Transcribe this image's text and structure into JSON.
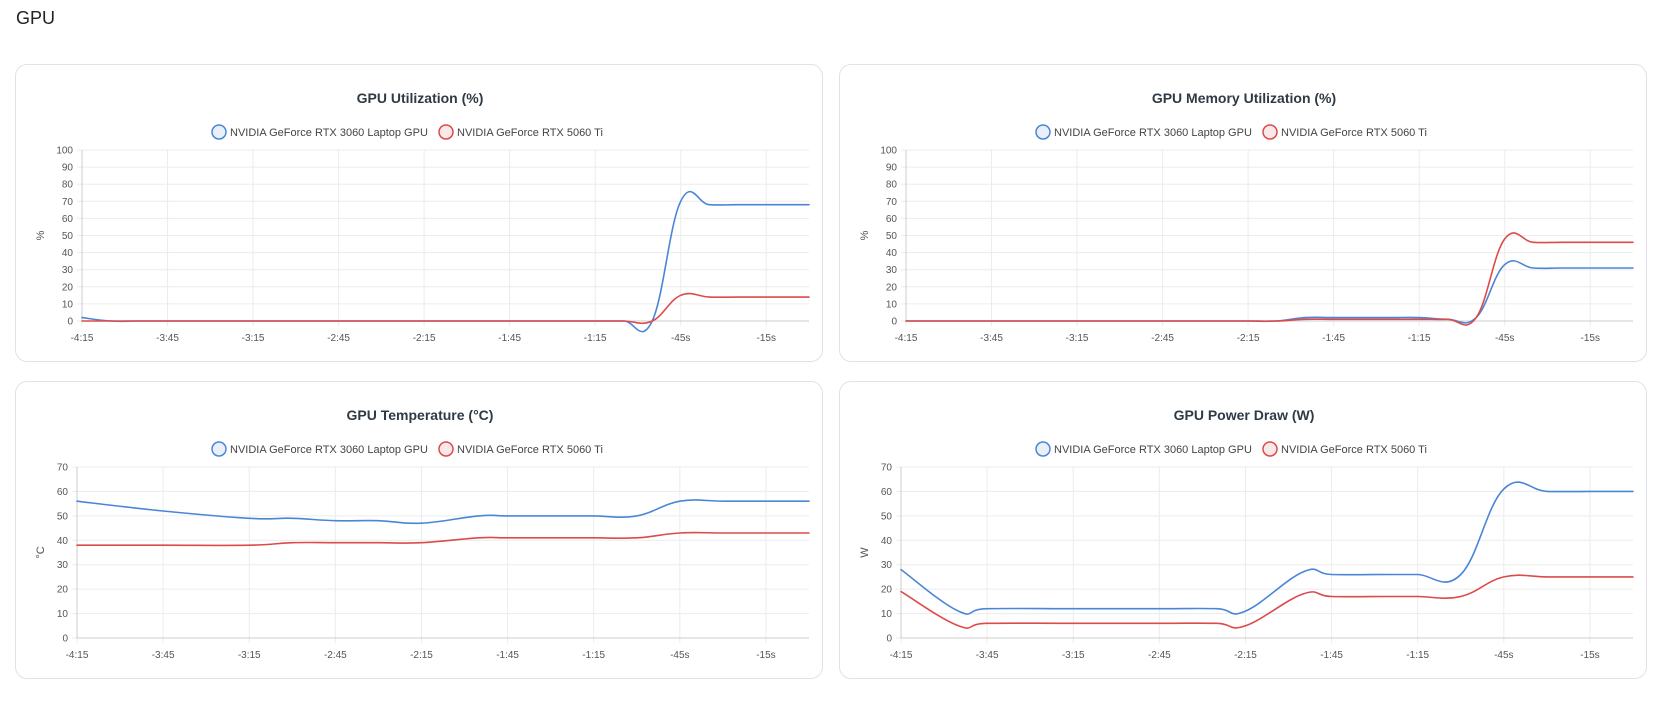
{
  "page": {
    "title": "GPU"
  },
  "legend": {
    "series_a": "NVIDIA GeForce RTX 3060 Laptop GPU",
    "series_b": "NVIDIA GeForce RTX 5060 Ti"
  },
  "colors": {
    "series_a": "#4a86d8",
    "series_b": "#dd4a4a",
    "grid": "#ececec",
    "axis": "#cccccc"
  },
  "chart_data": [
    {
      "type": "line",
      "title": "GPU Utilization (%)",
      "ylabel": "%",
      "ylim": [
        0,
        100
      ],
      "yticks": [
        0,
        10,
        20,
        30,
        40,
        50,
        60,
        70,
        80,
        90,
        100
      ],
      "xlim": [
        -255,
        0
      ],
      "xticks": [
        -255,
        -225,
        -195,
        -165,
        -135,
        -105,
        -75,
        -45,
        -15
      ],
      "xtick_labels": [
        "-4:15",
        "-3:45",
        "-3:15",
        "-2:45",
        "-2:15",
        "-1:45",
        "-1:15",
        "-45s",
        "-15s"
      ],
      "legend_position": "top",
      "grid": true,
      "series": [
        {
          "name": "NVIDIA GeForce RTX 3060 Laptop GPU",
          "color": "#4a86d8",
          "x": [
            -255,
            -245,
            -235,
            -225,
            -215,
            -205,
            -195,
            -185,
            -175,
            -165,
            -155,
            -145,
            -135,
            -125,
            -115,
            -105,
            -95,
            -85,
            -75,
            -65,
            -55,
            -45,
            -35,
            -25,
            -15,
            -5,
            0
          ],
          "y": [
            2,
            0,
            0,
            0,
            0,
            0,
            0,
            0,
            0,
            0,
            0,
            0,
            0,
            0,
            0,
            0,
            0,
            0,
            0,
            0,
            0,
            70,
            68,
            68,
            68,
            68,
            68
          ]
        },
        {
          "name": "NVIDIA GeForce RTX 5060 Ti",
          "color": "#dd4a4a",
          "x": [
            -255,
            -245,
            -235,
            -225,
            -215,
            -205,
            -195,
            -185,
            -175,
            -165,
            -155,
            -145,
            -135,
            -125,
            -115,
            -105,
            -95,
            -85,
            -75,
            -65,
            -55,
            -45,
            -35,
            -25,
            -15,
            -5,
            0
          ],
          "y": [
            0,
            0,
            0,
            0,
            0,
            0,
            0,
            0,
            0,
            0,
            0,
            0,
            0,
            0,
            0,
            0,
            0,
            0,
            0,
            0,
            0,
            15,
            14,
            14,
            14,
            14,
            14
          ]
        }
      ]
    },
    {
      "type": "line",
      "title": "GPU Memory Utilization (%)",
      "ylabel": "%",
      "ylim": [
        0,
        100
      ],
      "yticks": [
        0,
        10,
        20,
        30,
        40,
        50,
        60,
        70,
        80,
        90,
        100
      ],
      "xlim": [
        -255,
        0
      ],
      "xticks": [
        -255,
        -225,
        -195,
        -165,
        -135,
        -105,
        -75,
        -45,
        -15
      ],
      "xtick_labels": [
        "-4:15",
        "-3:45",
        "-3:15",
        "-2:45",
        "-2:15",
        "-1:45",
        "-1:15",
        "-45s",
        "-15s"
      ],
      "legend_position": "top",
      "grid": true,
      "series": [
        {
          "name": "NVIDIA GeForce RTX 3060 Laptop GPU",
          "color": "#4a86d8",
          "x": [
            -255,
            -245,
            -235,
            -225,
            -215,
            -205,
            -195,
            -185,
            -175,
            -165,
            -155,
            -145,
            -135,
            -125,
            -115,
            -105,
            -95,
            -85,
            -75,
            -65,
            -55,
            -45,
            -35,
            -25,
            -15,
            -5,
            0
          ],
          "y": [
            0,
            0,
            0,
            0,
            0,
            0,
            0,
            0,
            0,
            0,
            0,
            0,
            0,
            0,
            2,
            2,
            2,
            2,
            2,
            1,
            2,
            33,
            31,
            31,
            31,
            31,
            31
          ]
        },
        {
          "name": "NVIDIA GeForce RTX 5060 Ti",
          "color": "#dd4a4a",
          "x": [
            -255,
            -245,
            -235,
            -225,
            -215,
            -205,
            -195,
            -185,
            -175,
            -165,
            -155,
            -145,
            -135,
            -125,
            -115,
            -105,
            -95,
            -85,
            -75,
            -65,
            -55,
            -45,
            -35,
            -25,
            -15,
            -5,
            0
          ],
          "y": [
            0,
            0,
            0,
            0,
            0,
            0,
            0,
            0,
            0,
            0,
            0,
            0,
            0,
            0,
            1,
            1,
            1,
            1,
            1,
            1,
            2,
            48,
            46,
            46,
            46,
            46,
            46
          ]
        }
      ]
    },
    {
      "type": "line",
      "title": "GPU Temperature (°C)",
      "ylabel": "°C",
      "ylim": [
        0,
        70
      ],
      "yticks": [
        0,
        10,
        20,
        30,
        40,
        50,
        60,
        70
      ],
      "xlim": [
        -255,
        0
      ],
      "xticks": [
        -255,
        -225,
        -195,
        -165,
        -135,
        -105,
        -75,
        -45,
        -15
      ],
      "xtick_labels": [
        "-4:15",
        "-3:45",
        "-3:15",
        "-2:45",
        "-2:15",
        "-1:45",
        "-1:15",
        "-45s",
        "-15s"
      ],
      "legend_position": "top",
      "grid": true,
      "series": [
        {
          "name": "NVIDIA GeForce RTX 3060 Laptop GPU",
          "color": "#4a86d8",
          "x": [
            -255,
            -225,
            -195,
            -180,
            -165,
            -150,
            -135,
            -115,
            -105,
            -85,
            -75,
            -60,
            -45,
            -30,
            -15,
            0
          ],
          "y": [
            56,
            52,
            49,
            49,
            48,
            48,
            47,
            50,
            50,
            50,
            50,
            50,
            56,
            56,
            56,
            56
          ]
        },
        {
          "name": "NVIDIA GeForce RTX 5060 Ti",
          "color": "#dd4a4a",
          "x": [
            -255,
            -225,
            -195,
            -180,
            -165,
            -150,
            -135,
            -115,
            -105,
            -85,
            -75,
            -60,
            -45,
            -30,
            -15,
            0
          ],
          "y": [
            38,
            38,
            38,
            39,
            39,
            39,
            39,
            41,
            41,
            41,
            41,
            41,
            43,
            43,
            43,
            43
          ]
        }
      ]
    },
    {
      "type": "line",
      "title": "GPU Power Draw (W)",
      "ylabel": "W",
      "ylim": [
        0,
        70
      ],
      "yticks": [
        0,
        10,
        20,
        30,
        40,
        50,
        60,
        70
      ],
      "xlim": [
        -255,
        0
      ],
      "xticks": [
        -255,
        -225,
        -195,
        -165,
        -135,
        -105,
        -75,
        -45,
        -15
      ],
      "xtick_labels": [
        "-4:15",
        "-3:45",
        "-3:15",
        "-2:45",
        "-2:15",
        "-1:45",
        "-1:15",
        "-45s",
        "-15s"
      ],
      "legend_position": "top",
      "grid": true,
      "series": [
        {
          "name": "NVIDIA GeForce RTX 3060 Laptop GPU",
          "color": "#4a86d8",
          "x": [
            -255,
            -235,
            -225,
            -195,
            -165,
            -145,
            -135,
            -115,
            -105,
            -85,
            -75,
            -60,
            -45,
            -30,
            -15,
            0
          ],
          "y": [
            28,
            11,
            12,
            12,
            12,
            12,
            11,
            27,
            26,
            26,
            26,
            26,
            61,
            60,
            60,
            60
          ]
        },
        {
          "name": "NVIDIA GeForce RTX 5060 Ti",
          "color": "#dd4a4a",
          "x": [
            -255,
            -235,
            -225,
            -195,
            -165,
            -145,
            -135,
            -115,
            -105,
            -85,
            -75,
            -60,
            -45,
            -30,
            -15,
            0
          ],
          "y": [
            19,
            5,
            6,
            6,
            6,
            6,
            5,
            18,
            17,
            17,
            17,
            17,
            25,
            25,
            25,
            25
          ]
        }
      ]
    }
  ]
}
